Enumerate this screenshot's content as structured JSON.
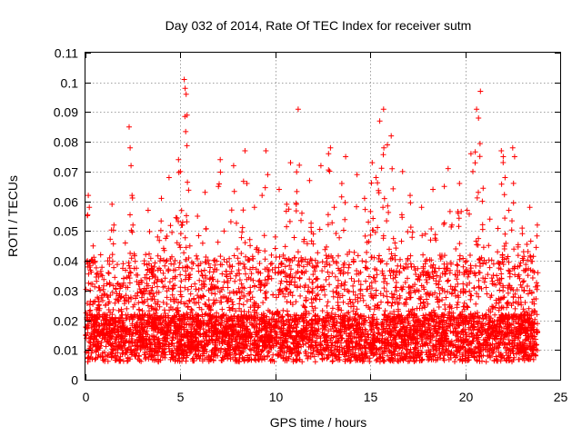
{
  "chart_data": {
    "type": "scatter",
    "title": "Day 032 of 2014, Rate Of TEC Index for receiver sutm",
    "xlabel": "GPS time / hours",
    "ylabel": "ROTI / TECUs",
    "xlim": [
      0,
      25
    ],
    "ylim": [
      0,
      0.11
    ],
    "x_ticks": [
      0,
      5,
      10,
      15,
      20,
      25
    ],
    "x_tick_labels": [
      "0",
      "5",
      "10",
      "15",
      "20",
      "25"
    ],
    "y_ticks": [
      0,
      0.01,
      0.02,
      0.03,
      0.04,
      0.05,
      0.06,
      0.07,
      0.08,
      0.09,
      0.1,
      0.11
    ],
    "y_tick_labels": [
      "0",
      "0.01",
      "0.02",
      "0.03",
      "0.04",
      "0.05",
      "0.06",
      "0.07",
      "0.08",
      "0.09",
      "0.1",
      "0.11"
    ],
    "grid": true,
    "legend": "none",
    "marker": "plus",
    "marker_color": "#ff0000",
    "series": [
      {
        "points": [
          [
            0.05,
            0.014
          ],
          [
            0.1,
            0.04
          ],
          [
            0.15,
            0.062
          ],
          [
            0.2,
            0.058
          ],
          [
            0.25,
            0.03
          ],
          [
            0.3,
            0.02
          ],
          [
            0.4,
            0.045
          ],
          [
            0.5,
            0.012
          ],
          [
            0.7,
            0.025
          ],
          [
            0.8,
            0.042
          ],
          [
            1.0,
            0.018
          ],
          [
            1.2,
            0.036
          ],
          [
            1.4,
            0.059
          ],
          [
            1.5,
            0.052
          ],
          [
            1.7,
            0.011
          ],
          [
            1.9,
            0.028
          ],
          [
            2.1,
            0.046
          ],
          [
            2.3,
            0.085
          ],
          [
            2.35,
            0.078
          ],
          [
            2.4,
            0.072
          ],
          [
            2.45,
            0.062
          ],
          [
            2.5,
            0.052
          ],
          [
            2.7,
            0.033
          ],
          [
            2.9,
            0.015
          ],
          [
            3.1,
            0.04
          ],
          [
            3.3,
            0.057
          ],
          [
            3.6,
            0.022
          ],
          [
            3.8,
            0.048
          ],
          [
            4.0,
            0.061
          ],
          [
            4.2,
            0.013
          ],
          [
            4.4,
            0.068
          ],
          [
            4.6,
            0.034
          ],
          [
            4.9,
            0.074
          ],
          [
            5.0,
            0.07
          ],
          [
            5.1,
            0.052
          ],
          [
            5.2,
            0.101
          ],
          [
            5.25,
            0.098
          ],
          [
            5.3,
            0.096
          ],
          [
            5.35,
            0.089
          ],
          [
            5.5,
            0.045
          ],
          [
            5.7,
            0.027
          ],
          [
            5.9,
            0.055
          ],
          [
            6.1,
            0.019
          ],
          [
            6.3,
            0.063
          ],
          [
            6.5,
            0.039
          ],
          [
            6.8,
            0.016
          ],
          [
            7.0,
            0.065
          ],
          [
            7.1,
            0.074
          ],
          [
            7.3,
            0.05
          ],
          [
            7.5,
            0.031
          ],
          [
            7.8,
            0.072
          ],
          [
            8.0,
            0.044
          ],
          [
            8.2,
            0.023
          ],
          [
            8.4,
            0.077
          ],
          [
            8.5,
            0.066
          ],
          [
            8.7,
            0.012
          ],
          [
            8.9,
            0.058
          ],
          [
            9.1,
            0.036
          ],
          [
            9.3,
            0.062
          ],
          [
            9.5,
            0.077
          ],
          [
            9.6,
            0.069
          ],
          [
            9.8,
            0.017
          ],
          [
            10.0,
            0.048
          ],
          [
            10.2,
            0.064
          ],
          [
            10.4,
            0.029
          ],
          [
            10.6,
            0.059
          ],
          [
            10.8,
            0.073
          ],
          [
            11.0,
            0.041
          ],
          [
            11.2,
            0.091
          ],
          [
            11.4,
            0.056
          ],
          [
            11.6,
            0.021
          ],
          [
            11.8,
            0.067
          ],
          [
            12.0,
            0.049
          ],
          [
            12.2,
            0.014
          ],
          [
            12.4,
            0.072
          ],
          [
            12.6,
            0.038
          ],
          [
            12.8,
            0.076
          ],
          [
            12.9,
            0.078
          ],
          [
            13.1,
            0.058
          ],
          [
            13.3,
            0.025
          ],
          [
            13.5,
            0.066
          ],
          [
            13.7,
            0.075
          ],
          [
            13.9,
            0.043
          ],
          [
            14.1,
            0.018
          ],
          [
            14.3,
            0.069
          ],
          [
            14.5,
            0.032
          ],
          [
            14.7,
            0.061
          ],
          [
            14.9,
            0.053
          ],
          [
            15.1,
            0.073
          ],
          [
            15.3,
            0.068
          ],
          [
            15.5,
            0.087
          ],
          [
            15.7,
            0.091
          ],
          [
            15.9,
            0.079
          ],
          [
            16.1,
            0.082
          ],
          [
            16.3,
            0.046
          ],
          [
            16.5,
            0.015
          ],
          [
            16.7,
            0.07
          ],
          [
            16.9,
            0.027
          ],
          [
            17.1,
            0.062
          ],
          [
            17.3,
            0.038
          ],
          [
            17.5,
            0.009
          ],
          [
            17.7,
            0.058
          ],
          [
            17.9,
            0.049
          ],
          [
            18.1,
            0.022
          ],
          [
            18.3,
            0.064
          ],
          [
            18.5,
            0.035
          ],
          [
            18.7,
            0.012
          ],
          [
            18.9,
            0.065
          ],
          [
            19.1,
            0.071
          ],
          [
            19.3,
            0.052
          ],
          [
            19.5,
            0.044
          ],
          [
            19.7,
            0.066
          ],
          [
            19.9,
            0.019
          ],
          [
            20.1,
            0.057
          ],
          [
            20.3,
            0.076
          ],
          [
            20.4,
            0.07
          ],
          [
            20.6,
            0.091
          ],
          [
            20.7,
            0.088
          ],
          [
            20.8,
            0.097
          ],
          [
            20.9,
            0.06
          ],
          [
            21.1,
            0.031
          ],
          [
            21.3,
            0.054
          ],
          [
            21.5,
            0.016
          ],
          [
            21.7,
            0.043
          ],
          [
            21.9,
            0.077
          ],
          [
            22.0,
            0.075
          ],
          [
            22.1,
            0.068
          ],
          [
            22.3,
            0.057
          ],
          [
            22.5,
            0.078
          ],
          [
            22.6,
            0.075
          ],
          [
            22.8,
            0.026
          ],
          [
            23.0,
            0.051
          ],
          [
            23.2,
            0.037
          ],
          [
            23.4,
            0.058
          ],
          [
            23.6,
            0.011
          ],
          [
            23.8,
            0.052
          ]
        ]
      }
    ]
  }
}
